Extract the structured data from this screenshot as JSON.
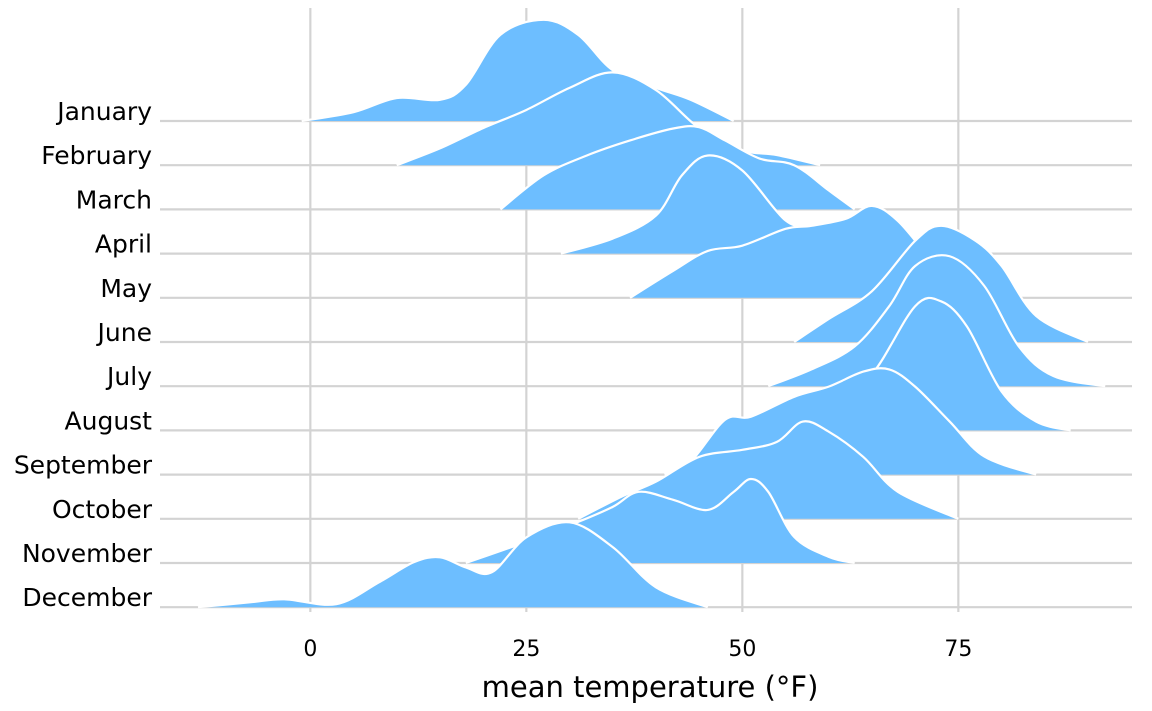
{
  "chart_data": {
    "type": "ridgeline",
    "xlabel": "mean temperature (°F)",
    "color": "#6dbeff",
    "grid": true,
    "xlim": [
      -17.4,
      95.1
    ],
    "xticks": [
      0,
      25,
      50,
      75
    ],
    "series": [
      {
        "name": "January",
        "x": [
          -1,
          5,
          10,
          15,
          18,
          22,
          27,
          31,
          35,
          40,
          44,
          49
        ],
        "values": [
          0,
          0.2,
          0.52,
          0.48,
          0.82,
          1.95,
          2.29,
          1.95,
          1.15,
          0.75,
          0.48,
          0
        ]
      },
      {
        "name": "February",
        "x": [
          10,
          15,
          20,
          25,
          30,
          35,
          40,
          45,
          50,
          54,
          59
        ],
        "values": [
          0,
          0.38,
          0.84,
          1.25,
          1.75,
          2.1,
          1.7,
          0.84,
          0.34,
          0.23,
          0
        ]
      },
      {
        "name": "March",
        "x": [
          22,
          27,
          32,
          37,
          42,
          45,
          48,
          52,
          56,
          60,
          63
        ],
        "values": [
          0,
          0.77,
          1.22,
          1.56,
          1.83,
          1.86,
          1.56,
          1.15,
          1.0,
          0.43,
          0
        ]
      },
      {
        "name": "April",
        "x": [
          29,
          35,
          40,
          43,
          46,
          50,
          55,
          58,
          63,
          66
        ],
        "values": [
          0,
          0.34,
          0.86,
          1.77,
          2.22,
          1.88,
          0.75,
          0.63,
          0.41,
          0
        ]
      },
      {
        "name": "May",
        "x": [
          37,
          42,
          46,
          50,
          55,
          58,
          62,
          65,
          68,
          72,
          76,
          79
        ],
        "values": [
          0,
          0.61,
          1.06,
          1.18,
          1.56,
          1.63,
          1.79,
          2.08,
          1.74,
          0.84,
          0.16,
          0
        ]
      },
      {
        "name": "June",
        "x": [
          56,
          60,
          65,
          70,
          73,
          77,
          80,
          84,
          90
        ],
        "values": [
          0,
          0.52,
          1.15,
          2.29,
          2.63,
          2.29,
          1.72,
          0.59,
          0
        ]
      },
      {
        "name": "July",
        "x": [
          53,
          58,
          63,
          67,
          70,
          74,
          78,
          82,
          86,
          92
        ],
        "values": [
          0,
          0.38,
          0.9,
          1.81,
          2.72,
          2.94,
          2.27,
          0.9,
          0.23,
          0
        ]
      },
      {
        "name": "August",
        "x": [
          51,
          55,
          60,
          65,
          70,
          73,
          76,
          80,
          84,
          88
        ],
        "values": [
          0,
          0.32,
          0.54,
          1.27,
          2.81,
          2.92,
          2.35,
          0.88,
          0.2,
          0
        ]
      },
      {
        "name": "September",
        "x": [
          41,
          44,
          48,
          51,
          56,
          60,
          64,
          67,
          70,
          74,
          78,
          84
        ],
        "values": [
          0,
          0.29,
          1.24,
          1.31,
          1.76,
          1.99,
          2.33,
          2.38,
          1.99,
          1.2,
          0.41,
          0
        ]
      },
      {
        "name": "October",
        "x": [
          31,
          36,
          40,
          45,
          50,
          54,
          57,
          60,
          64,
          68,
          75
        ],
        "values": [
          0,
          0.5,
          0.84,
          1.4,
          1.56,
          1.74,
          2.2,
          1.97,
          1.4,
          0.61,
          0
        ]
      },
      {
        "name": "November",
        "x": [
          18,
          25,
          31,
          35,
          38,
          42,
          46,
          49,
          51,
          53,
          56,
          60,
          63
        ],
        "values": [
          0,
          0.48,
          0.93,
          1.27,
          1.61,
          1.43,
          1.2,
          1.61,
          1.9,
          1.61,
          0.59,
          0.14,
          0
        ]
      },
      {
        "name": "December",
        "x": [
          -13,
          -7,
          -3,
          3,
          8,
          12,
          15,
          18,
          21,
          25,
          30,
          35,
          40,
          46
        ],
        "values": [
          0,
          0.11,
          0.18,
          0.07,
          0.57,
          1.02,
          1.13,
          0.9,
          0.79,
          1.58,
          1.92,
          1.36,
          0.45,
          0
        ]
      }
    ]
  }
}
